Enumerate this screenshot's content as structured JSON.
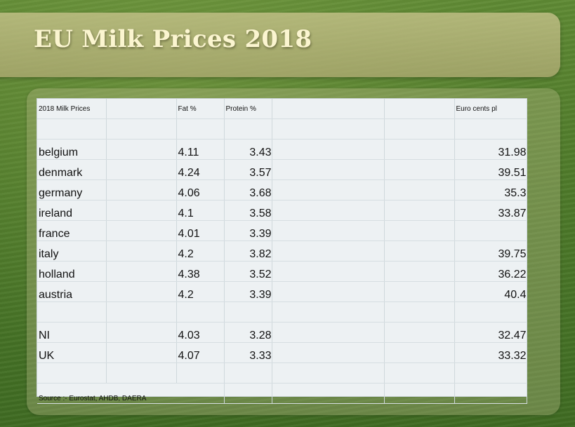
{
  "slide": {
    "title": "EU Milk Prices 2018"
  },
  "table": {
    "headers": {
      "label": "2018 Milk Prices",
      "fat": "Fat %",
      "protein": "Protein %",
      "price": "Euro cents pl"
    },
    "rows": [
      {
        "country": "belgium",
        "fat": "4.11",
        "protein": "3.43",
        "price": "31.98"
      },
      {
        "country": "denmark",
        "fat": "4.24",
        "protein": "3.57",
        "price": "39.51"
      },
      {
        "country": "germany",
        "fat": "4.06",
        "protein": "3.68",
        "price": "35.3"
      },
      {
        "country": "ireland",
        "fat": "4.1",
        "protein": "3.58",
        "price": "33.87"
      },
      {
        "country": "france",
        "fat": "4.01",
        "protein": "3.39",
        "price": ""
      },
      {
        "country": "italy",
        "fat": "4.2",
        "protein": "3.82",
        "price": "39.75"
      },
      {
        "country": "holland",
        "fat": "4.38",
        "protein": "3.52",
        "price": "36.22"
      },
      {
        "country": "austria",
        "fat": "4.2",
        "protein": "3.39",
        "price": "40.4"
      }
    ],
    "rows_uk": [
      {
        "country": "NI",
        "fat": "4.03",
        "protein": "3.28",
        "price": "32.47"
      },
      {
        "country": "UK",
        "fat": "4.07",
        "protein": "3.33",
        "price": "33.32"
      }
    ],
    "source": "Source :- Eurostat, AHDB, DAERA"
  }
}
